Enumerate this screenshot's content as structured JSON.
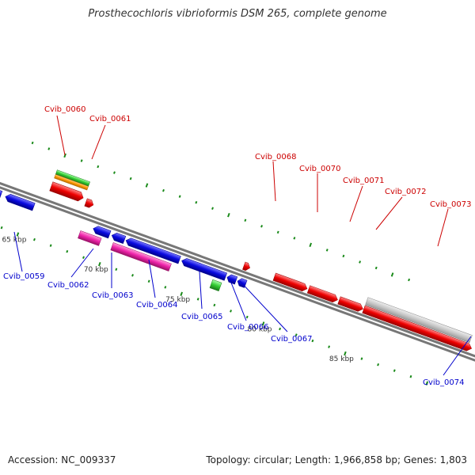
{
  "title": "Prosthecochloris vibrioformis DSM 265, complete genome",
  "footer": {
    "accession": "Accession: NC_009337",
    "summary": "Topology: circular; Length: 1,966,858 bp; Genes: 1,803"
  },
  "colors": {
    "top_strand_label": "#cc0000",
    "bottom_strand_label": "#0000cc",
    "backbone": "#777777",
    "tick": "#1a8a1a",
    "blue_gene": "#0a0ae0",
    "red_gene": "#ee0000",
    "green_gene": "#33cc33",
    "orange_gene": "#ff9900",
    "magenta_gene": "#ee22aa",
    "gray_gene": "#c8c8c8"
  },
  "kbp_labels": [
    "65 kbp",
    "70 kbp",
    "75 kbp",
    "80 kbp",
    "85 kbp"
  ],
  "gene_labels_top": [
    "Cvib_0060",
    "Cvib_0061",
    "Cvib_0068",
    "Cvib_0070",
    "Cvib_0071",
    "Cvib_0072",
    "Cvib_0073"
  ],
  "gene_labels_bottom": [
    "Cvib_0059",
    "Cvib_0062",
    "Cvib_0063",
    "Cvib_0064",
    "Cvib_0065",
    "Cvib_0066",
    "Cvib_0067",
    "Cvib_0074"
  ]
}
